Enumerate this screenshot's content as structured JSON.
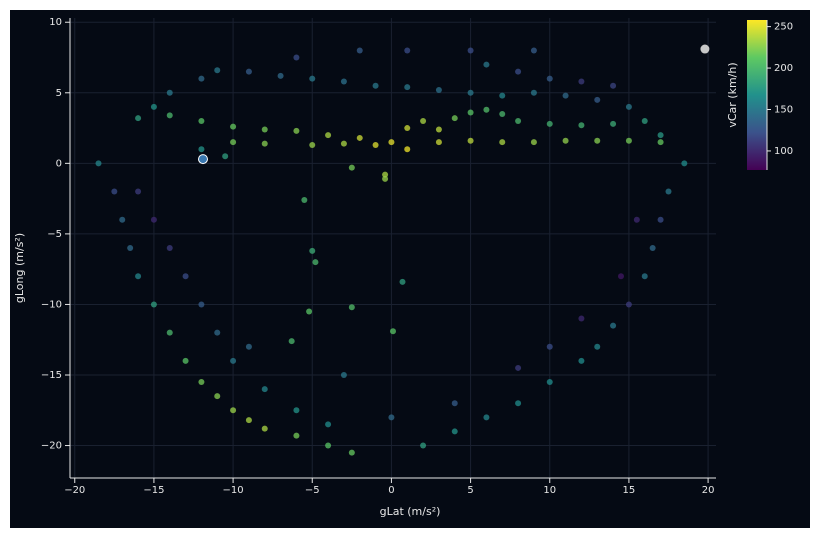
{
  "chart_data": {
    "type": "scatter",
    "xlabel": "gLat (m/s²)",
    "ylabel": "gLong (m/s²)",
    "colorbar_title": "vCar (km/h)",
    "xlim": [
      -20.3,
      20.5
    ],
    "ylim": [
      -22.3,
      10.3
    ],
    "xticks": [
      {
        "value": -20,
        "label": "−20"
      },
      {
        "value": -15,
        "label": "−15"
      },
      {
        "value": -10,
        "label": "−10"
      },
      {
        "value": -5,
        "label": "−5"
      },
      0,
      5,
      10,
      15,
      20
    ],
    "yticks": [
      10,
      5,
      0,
      {
        "value": -5,
        "label": "−5"
      },
      {
        "value": -10,
        "label": "−10"
      },
      {
        "value": -15,
        "label": "−15"
      },
      {
        "value": -20,
        "label": "−20"
      }
    ],
    "grid": true,
    "clim": [
      77,
      258
    ],
    "cticks": [
      100,
      150,
      200,
      250
    ],
    "colorscale": [
      "#440154",
      "#3b528b",
      "#21918c",
      "#5ec962",
      "#fde725"
    ],
    "x": [
      -16,
      -14,
      -12,
      -10,
      -8,
      -6,
      -4,
      -2,
      0,
      1,
      2,
      3,
      4,
      5,
      6,
      7,
      8,
      10,
      12,
      14,
      16,
      17,
      -1,
      1,
      3,
      5,
      7,
      9,
      11,
      13,
      15,
      17,
      -8,
      -5,
      -3,
      -10,
      -15,
      -14,
      -12,
      -11,
      -9,
      -7,
      -5,
      -3,
      -1,
      1,
      3,
      5,
      7,
      9,
      11,
      13,
      15,
      8,
      10,
      12,
      14,
      -2,
      1,
      5,
      9,
      -6,
      6,
      -18.5,
      -17.5,
      -17,
      -16.5,
      -16,
      -15,
      -14,
      -13,
      -12,
      -11,
      -10,
      -9,
      -8,
      -6,
      -4,
      -2.5,
      -16,
      -15,
      -14,
      -13,
      -12,
      -11,
      -10,
      -8,
      -6,
      -4,
      18.5,
      17.5,
      17,
      16.5,
      16,
      15,
      14,
      13,
      12,
      10,
      8,
      6,
      4,
      2,
      0,
      15.5,
      14.5,
      12,
      10,
      8,
      4,
      -5.5,
      -5,
      -4.8,
      -2.5,
      -5.2,
      -6.3,
      0.1,
      0.7,
      -0.4,
      -0.4,
      -2.5,
      -12,
      -10.5,
      -3,
      -9
    ],
    "y": [
      3.2,
      3.4,
      3.0,
      2.6,
      2.4,
      2.3,
      2.0,
      1.8,
      1.5,
      2.5,
      3.0,
      2.4,
      3.2,
      3.6,
      3.8,
      3.5,
      3.0,
      2.8,
      2.7,
      2.8,
      3.0,
      2.0,
      1.3,
      1.0,
      1.5,
      1.6,
      1.5,
      1.5,
      1.6,
      1.6,
      1.6,
      1.5,
      1.4,
      1.3,
      1.4,
      1.5,
      4,
      5,
      6,
      6.6,
      6.5,
      6.2,
      6.0,
      5.8,
      5.5,
      5.4,
      5.2,
      5.0,
      4.8,
      5.0,
      4.8,
      4.5,
      4.0,
      6.5,
      6.0,
      5.8,
      5.5,
      8,
      8,
      8,
      8,
      7.5,
      7,
      0,
      -2,
      -4,
      -6,
      -8,
      -10,
      -12,
      -14,
      -15.5,
      -16.5,
      -17.5,
      -18.2,
      -18.8,
      -19.3,
      -20,
      -20.5,
      -2,
      -4,
      -6,
      -8,
      -10,
      -12,
      -14,
      -16,
      -17.5,
      -18.5,
      0,
      -2,
      -4,
      -6,
      -8,
      -10,
      -11.5,
      -13,
      -14,
      -15.5,
      -17,
      -18,
      -19,
      -20,
      -18,
      -4,
      -8,
      -11,
      -13,
      -14.5,
      -17,
      -2.6,
      -6.2,
      -7,
      -10.2,
      -10.5,
      -12.6,
      -11.9,
      -8.4,
      -0.8,
      -1.1,
      -0.3,
      1,
      0.5,
      -15,
      -13
    ],
    "vCar": [
      180,
      200,
      210,
      215,
      220,
      225,
      235,
      245,
      252,
      245,
      235,
      240,
      220,
      210,
      205,
      200,
      200,
      195,
      195,
      190,
      180,
      175,
      250,
      255,
      245,
      240,
      235,
      230,
      228,
      225,
      220,
      215,
      225,
      230,
      235,
      220,
      170,
      150,
      140,
      150,
      130,
      140,
      150,
      145,
      150,
      150,
      145,
      150,
      160,
      150,
      140,
      130,
      150,
      120,
      130,
      110,
      115,
      130,
      120,
      120,
      130,
      120,
      150,
      160,
      120,
      140,
      140,
      160,
      180,
      200,
      210,
      220,
      225,
      230,
      235,
      235,
      220,
      210,
      215,
      110,
      100,
      110,
      120,
      130,
      140,
      150,
      160,
      170,
      165,
      165,
      150,
      120,
      140,
      150,
      110,
      150,
      160,
      165,
      165,
      165,
      160,
      170,
      180,
      140,
      100,
      90,
      100,
      120,
      110,
      130,
      200,
      190,
      200,
      205,
      210,
      200,
      210,
      180,
      235,
      230,
      220,
      170,
      180,
      150,
      140
    ],
    "highlight_points": {
      "x": [
        19.8,
        -11.9
      ],
      "y": [
        8.1,
        0.3
      ],
      "colors": [
        "#c8c8c8",
        "#3a78b0"
      ]
    }
  }
}
